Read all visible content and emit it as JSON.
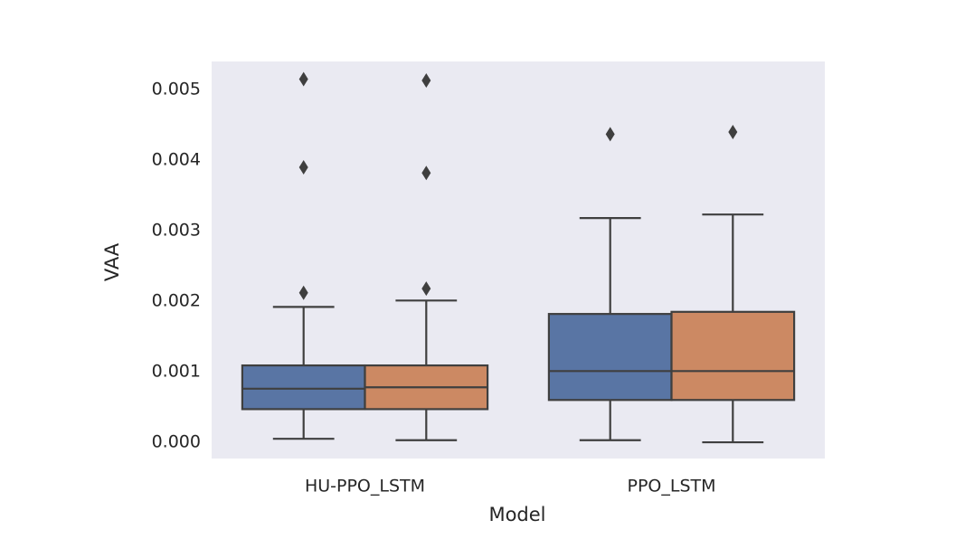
{
  "chart_data": {
    "type": "box",
    "x_label": "Model",
    "y_label": "VAA",
    "categories": [
      "HU-PPO_LSTM",
      "PPO_LSTM"
    ],
    "series": [
      {
        "color": "#5975a4",
        "stats": [
          {
            "whislo": 5e-05,
            "q1": 0.00047,
            "med": 0.00076,
            "q3": 0.00109,
            "whishi": 0.00192,
            "fliers": [
              0.00212,
              0.0039,
              0.00515
            ]
          },
          {
            "whislo": 3e-05,
            "q1": 0.0006,
            "med": 0.00101,
            "q3": 0.00182,
            "whishi": 0.00318,
            "fliers": [
              0.00437
            ]
          }
        ]
      },
      {
        "color": "#cc8963",
        "stats": [
          {
            "whislo": 3e-05,
            "q1": 0.00047,
            "med": 0.00078,
            "q3": 0.00109,
            "whishi": 0.00201,
            "fliers": [
              0.00218,
              0.00382,
              0.00513
            ]
          },
          {
            "whislo": 0.0,
            "q1": 0.0006,
            "med": 0.00101,
            "q3": 0.00185,
            "whishi": 0.00323,
            "fliers": [
              0.0044
            ]
          }
        ]
      }
    ],
    "ylim": [
      -0.00023,
      0.0054
    ],
    "yticks": [
      {
        "value": 0,
        "label": "0.000"
      },
      0.001,
      0.002,
      0.003,
      0.004,
      0.005
    ],
    "grid": false,
    "background": "#eaeaf2",
    "edge_color": "#3f3f3f"
  }
}
